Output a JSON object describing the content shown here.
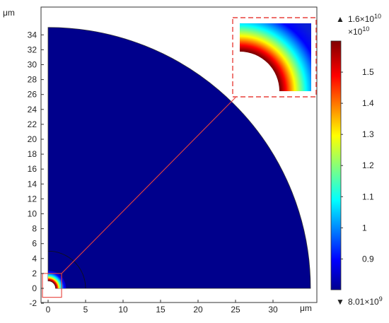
{
  "chart_data": {
    "type": "heatmap",
    "title": "",
    "xlabel": "",
    "ylabel": "",
    "x_unit": "μm",
    "y_unit": "μm",
    "xlim": [
      -1,
      35
    ],
    "ylim": [
      -2,
      36
    ],
    "x_ticks": [
      0,
      5,
      10,
      15,
      20,
      25,
      30
    ],
    "y_ticks": [
      -2,
      0,
      2,
      4,
      6,
      8,
      10,
      12,
      14,
      16,
      18,
      20,
      22,
      24,
      26,
      28,
      30,
      32,
      34
    ],
    "domain": {
      "shape": "quarter-annulus",
      "inner_radius": 1,
      "outer_radius": 35,
      "mesh_arc_radius": 5
    },
    "colorbar": {
      "colormap": "jet",
      "ticks": [
        0.9,
        1,
        1.1,
        1.2,
        1.3,
        1.4,
        1.5
      ],
      "multiplier_label": "×10^10",
      "max_label": "1.6×10^10",
      "min_label": "8.01×10^9",
      "min": 0.801,
      "max": 1.6
    },
    "zoom_box": [
      0,
      -1.2,
      1.8,
      2
    ],
    "zoom_line_end": [
      25,
      25.6
    ],
    "colors": {
      "background_field": "#00008c",
      "zoom_box": "#e8413c",
      "zoom_line": "#e8413c"
    }
  },
  "labels": {
    "x_unit": "μm",
    "y_unit": "μm",
    "cb_multiplier": "×10",
    "cb_multiplier_exp": "10",
    "cb_max": "1.6×10",
    "cb_max_exp": "10",
    "cb_min": "8.01×10",
    "cb_min_exp": "9",
    "cb_max_marker": "▲",
    "cb_min_marker": "▼"
  }
}
